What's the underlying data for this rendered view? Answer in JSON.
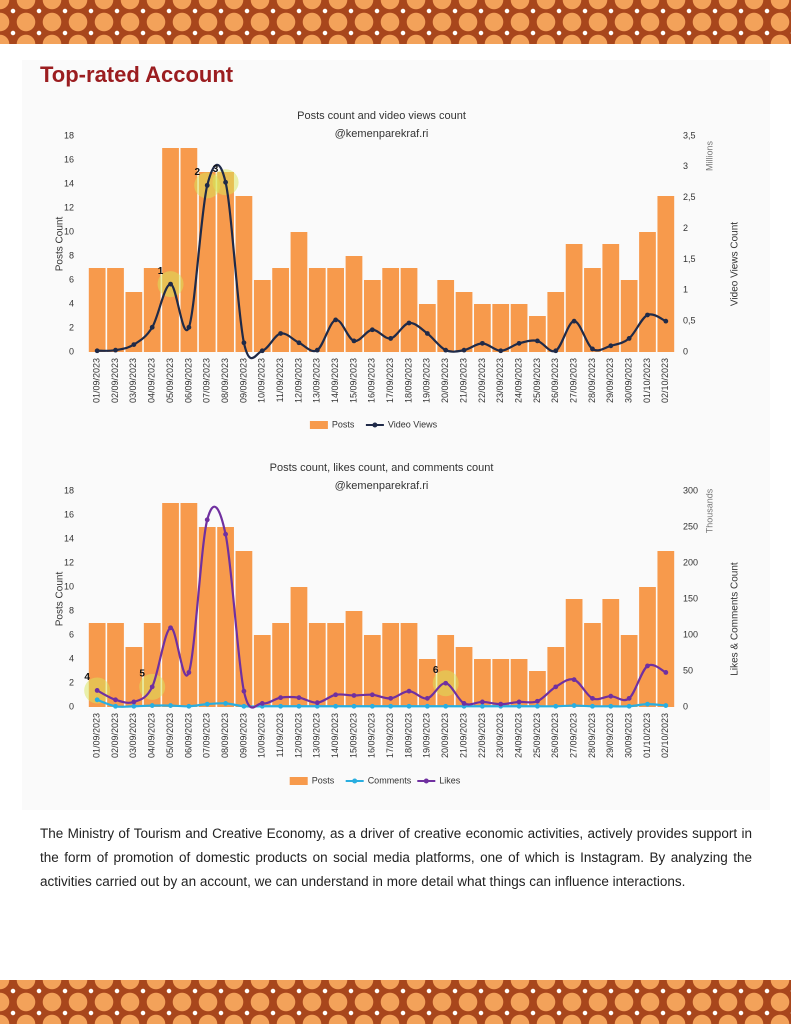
{
  "header": {
    "title": "Top-rated Account"
  },
  "chart_data": [
    {
      "type": "bar",
      "title": "Posts count and video views count",
      "subtitle": "@kemenparekraf.ri",
      "ylabel": "Posts Count",
      "y2label": "Video Views Count",
      "y2unit": "Millions",
      "categories": [
        "01/09/2023",
        "02/09/2023",
        "03/09/2023",
        "04/09/2023",
        "05/09/2023",
        "06/09/2023",
        "07/09/2023",
        "08/09/2023",
        "09/09/2023",
        "10/09/2023",
        "11/09/2023",
        "12/09/2023",
        "13/09/2023",
        "14/09/2023",
        "15/09/2023",
        "16/09/2023",
        "17/09/2023",
        "18/09/2023",
        "19/09/2023",
        "20/09/2023",
        "21/09/2023",
        "22/09/2023",
        "23/09/2023",
        "24/09/2023",
        "25/09/2023",
        "26/09/2023",
        "27/09/2023",
        "28/09/2023",
        "29/09/2023",
        "30/09/2023",
        "01/10/2023",
        "02/10/2023"
      ],
      "series": [
        {
          "name": "Posts",
          "type": "bar",
          "color": "#f79a4c",
          "values": [
            7,
            7,
            5,
            7,
            17,
            17,
            15,
            15,
            13,
            6,
            7,
            10,
            7,
            7,
            8,
            6,
            7,
            7,
            4,
            6,
            5,
            4,
            4,
            4,
            3,
            5,
            9,
            7,
            9,
            6,
            10,
            13
          ]
        },
        {
          "name": "Video Views",
          "type": "line",
          "axis": "y2",
          "color": "#1f2a48",
          "values": [
            0.02,
            0.03,
            0.12,
            0.4,
            1.1,
            0.4,
            2.7,
            2.75,
            0.15,
            0.02,
            0.3,
            0.15,
            0.03,
            0.52,
            0.18,
            0.36,
            0.22,
            0.47,
            0.3,
            0.03,
            0.03,
            0.14,
            0.02,
            0.14,
            0.18,
            0.02,
            0.5,
            0.05,
            0.1,
            0.22,
            0.6,
            0.5
          ]
        }
      ],
      "annotations": [
        "1",
        "2",
        "3"
      ],
      "ylim": [
        0,
        18
      ],
      "yticks": [
        0,
        2,
        4,
        6,
        8,
        10,
        12,
        14,
        16,
        18
      ],
      "y2lim": [
        0,
        3.5
      ],
      "y2ticks": [
        0,
        {
          "value": 0.5,
          "label": "0,5"
        },
        1,
        {
          "value": 1.5,
          "label": "1,5"
        },
        2,
        {
          "value": 2.5,
          "label": "2,5"
        },
        3,
        {
          "value": 3.5,
          "label": "3,5"
        }
      ],
      "legend": "bottom"
    },
    {
      "type": "bar",
      "title": "Posts count, likes count, and comments count",
      "subtitle": "@kemenparekraf.ri",
      "ylabel": "Posts Count",
      "y2label": "Likes & Comments Count",
      "y2unit": "Thousands",
      "categories": [
        "01/09/2023",
        "02/09/2023",
        "03/09/2023",
        "04/09/2023",
        "05/09/2023",
        "06/09/2023",
        "07/09/2023",
        "08/09/2023",
        "09/09/2023",
        "10/09/2023",
        "11/09/2023",
        "12/09/2023",
        "13/09/2023",
        "14/09/2023",
        "15/09/2023",
        "16/09/2023",
        "17/09/2023",
        "18/09/2023",
        "19/09/2023",
        "20/09/2023",
        "21/09/2023",
        "22/09/2023",
        "23/09/2023",
        "24/09/2023",
        "25/09/2023",
        "26/09/2023",
        "27/09/2023",
        "28/09/2023",
        "29/09/2023",
        "30/09/2023",
        "01/10/2023",
        "02/10/2023"
      ],
      "series": [
        {
          "name": "Posts",
          "type": "bar",
          "color": "#f79a4c",
          "values": [
            7,
            7,
            5,
            7,
            17,
            17,
            15,
            15,
            13,
            6,
            7,
            10,
            7,
            7,
            8,
            6,
            7,
            7,
            4,
            6,
            5,
            4,
            4,
            4,
            3,
            5,
            9,
            7,
            9,
            6,
            10,
            13
          ]
        },
        {
          "name": "Comments",
          "type": "line",
          "axis": "y2",
          "color": "#29aee0",
          "values": [
            10,
            1,
            1,
            2,
            2,
            1,
            4,
            5,
            1,
            1,
            1,
            1,
            1,
            1,
            1,
            1,
            1,
            1,
            1,
            1,
            1,
            1,
            1,
            1,
            1,
            1,
            2,
            1,
            1,
            1,
            4,
            2
          ]
        },
        {
          "name": "Likes",
          "type": "line",
          "axis": "y2",
          "color": "#7030a0",
          "values": [
            23,
            10,
            7,
            28,
            110,
            48,
            260,
            240,
            22,
            5,
            13,
            13,
            6,
            17,
            16,
            17,
            12,
            22,
            12,
            33,
            5,
            7,
            4,
            7,
            8,
            28,
            38,
            12,
            15,
            12,
            57,
            48
          ]
        }
      ],
      "annotations": [
        "4",
        "5",
        "6"
      ],
      "ylim": [
        0,
        18
      ],
      "yticks": [
        0,
        2,
        4,
        6,
        8,
        10,
        12,
        14,
        16,
        18
      ],
      "y2lim": [
        0,
        300
      ],
      "y2ticks": [
        0,
        50,
        100,
        150,
        200,
        250,
        300
      ],
      "legend": "bottom"
    }
  ],
  "body": {
    "paragraph": "The Ministry of Tourism and Creative Economy, as a driver of creative economic activities, actively provides support in the form of promotion of domestic products on social media platforms, one of which is Instagram. By analyzing the activities carried out by an account, we can understand in more detail what things can influence interactions."
  }
}
